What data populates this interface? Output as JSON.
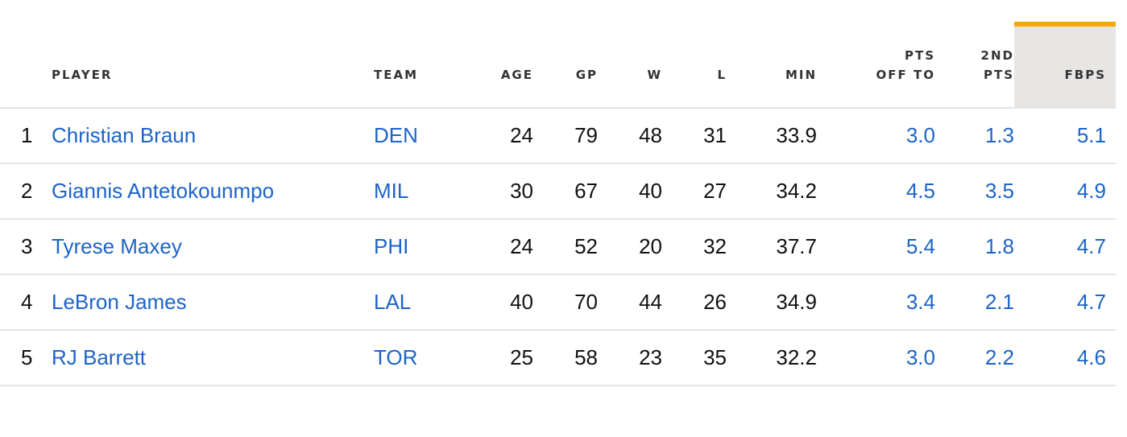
{
  "table": {
    "columns": [
      "PLAYER",
      "TEAM",
      "AGE",
      "GP",
      "W",
      "L",
      "MIN",
      "PTS OFF TO",
      "2ND PTS",
      "FBPS"
    ],
    "header": {
      "player": "PLAYER",
      "team": "TEAM",
      "age": "AGE",
      "gp": "GP",
      "w": "W",
      "l": "L",
      "min": "MIN",
      "pts_off_to_line1": "PTS",
      "pts_off_to_line2": "OFF TO",
      "second_pts_line1": "2ND",
      "second_pts_line2": "PTS",
      "fbps": "FBPS"
    },
    "sorted_column": "FBPS",
    "accent_color": "#f2a900",
    "link_color": "#1d64c8",
    "rows": [
      {
        "rank": "1",
        "player": "Christian Braun",
        "team": "DEN",
        "age": "24",
        "gp": "79",
        "w": "48",
        "l": "31",
        "min": "33.9",
        "pts_off_to": "3.0",
        "second_pts": "1.3",
        "fbps": "5.1"
      },
      {
        "rank": "2",
        "player": "Giannis Antetokounmpo",
        "team": "MIL",
        "age": "30",
        "gp": "67",
        "w": "40",
        "l": "27",
        "min": "34.2",
        "pts_off_to": "4.5",
        "second_pts": "3.5",
        "fbps": "4.9"
      },
      {
        "rank": "3",
        "player": "Tyrese Maxey",
        "team": "PHI",
        "age": "24",
        "gp": "52",
        "w": "20",
        "l": "32",
        "min": "37.7",
        "pts_off_to": "5.4",
        "second_pts": "1.8",
        "fbps": "4.7"
      },
      {
        "rank": "4",
        "player": "LeBron James",
        "team": "LAL",
        "age": "40",
        "gp": "70",
        "w": "44",
        "l": "26",
        "min": "34.9",
        "pts_off_to": "3.4",
        "second_pts": "2.1",
        "fbps": "4.7"
      },
      {
        "rank": "5",
        "player": "RJ Barrett",
        "team": "TOR",
        "age": "25",
        "gp": "58",
        "w": "23",
        "l": "35",
        "min": "32.2",
        "pts_off_to": "3.0",
        "second_pts": "2.2",
        "fbps": "4.6"
      }
    ]
  }
}
